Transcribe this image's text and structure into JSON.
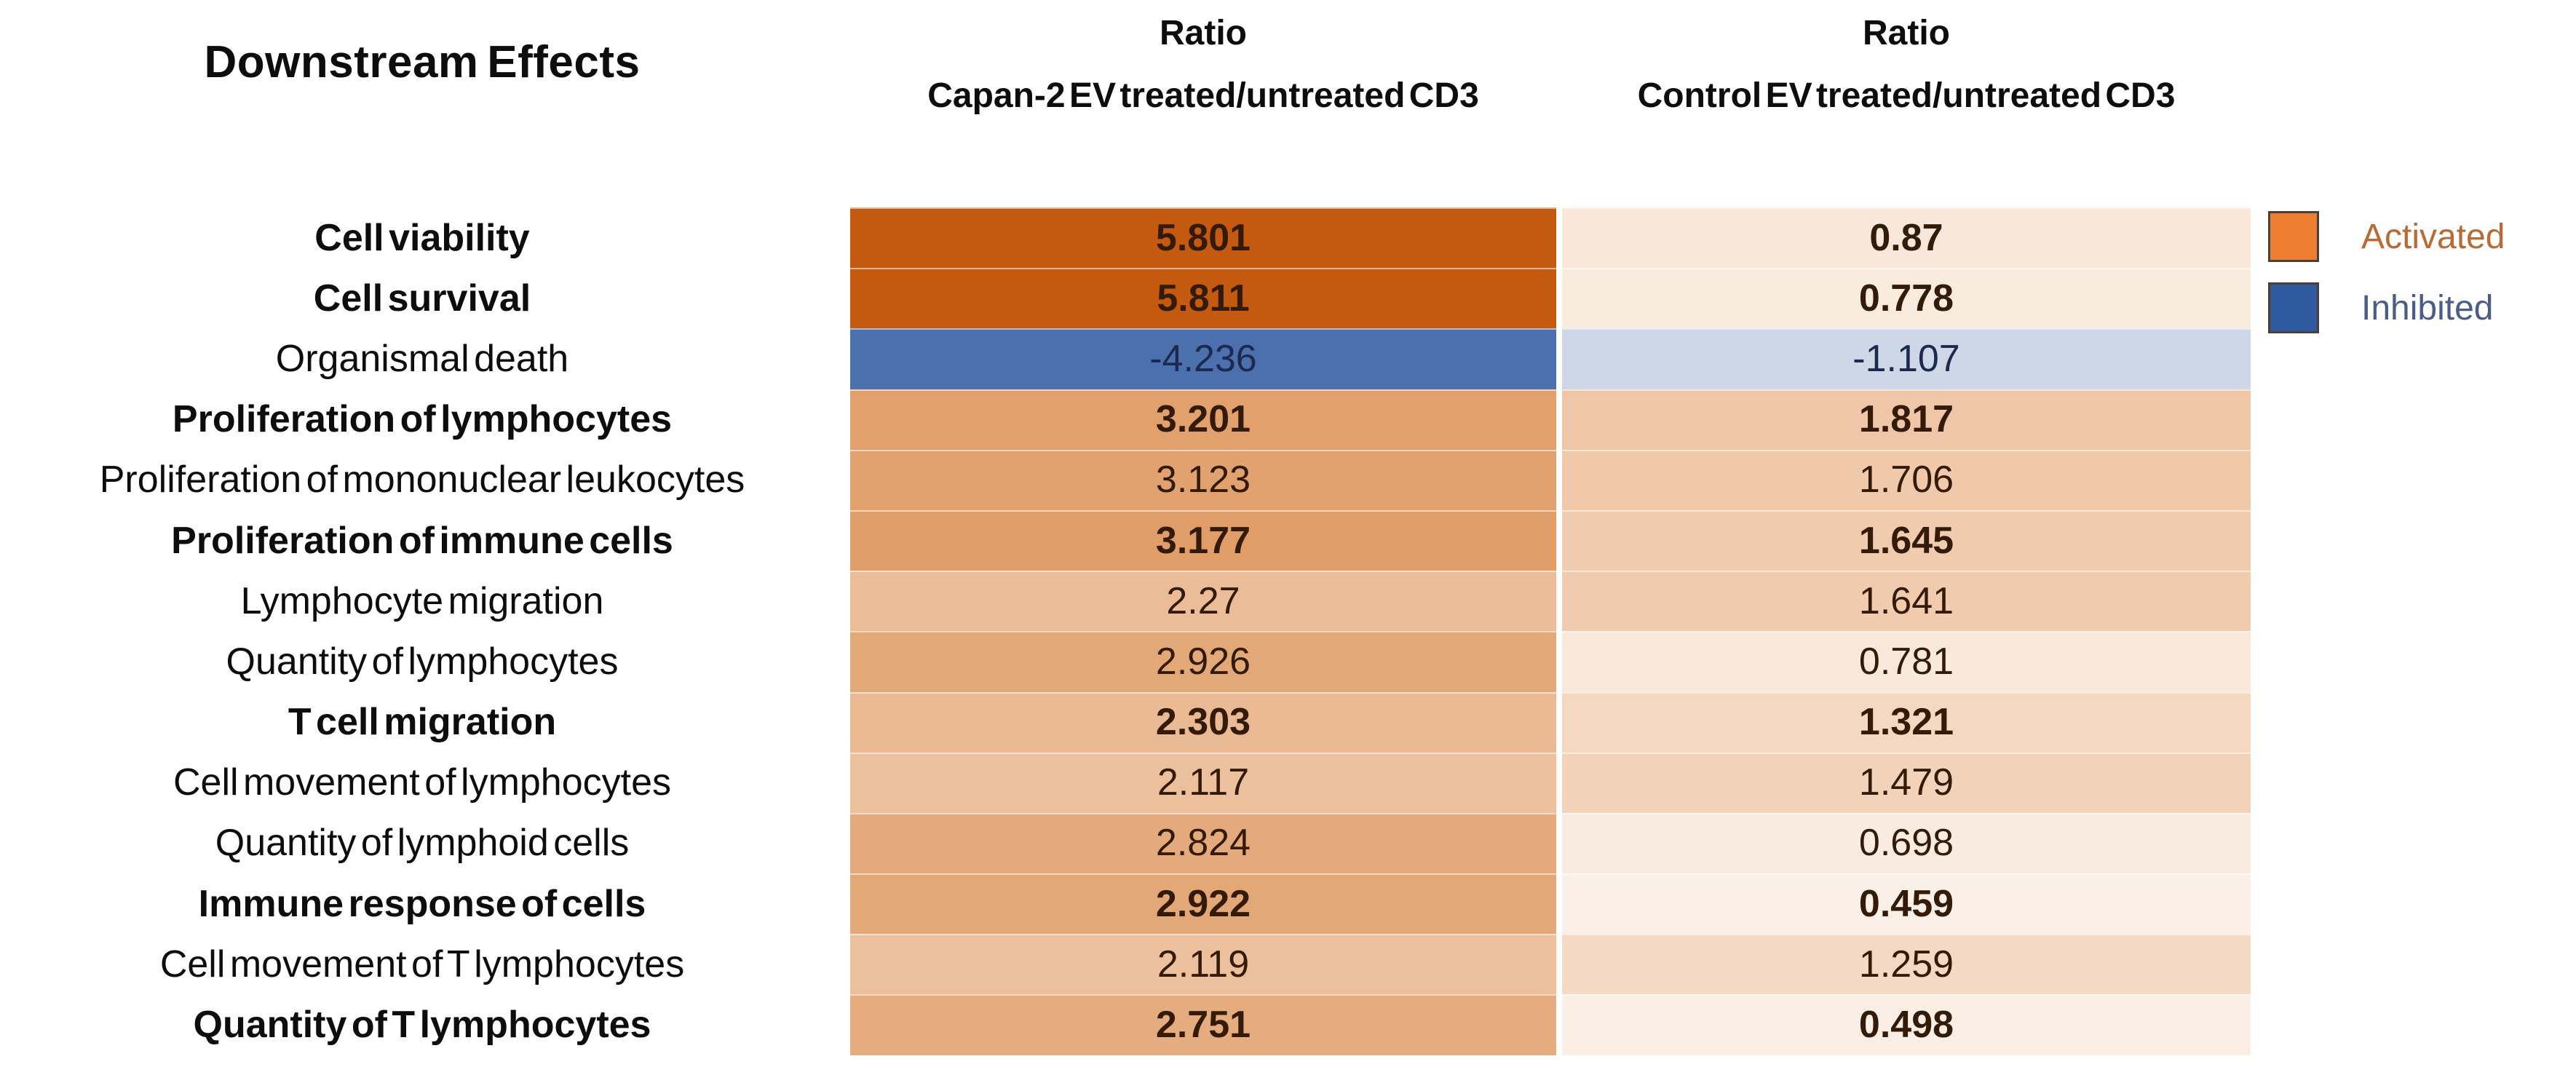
{
  "header": {
    "title": "Downstream Effects",
    "columns": [
      {
        "ratio_label": "Ratio",
        "sub_label": "Capan-2 EV treated/untreated CD3"
      },
      {
        "ratio_label": "Ratio",
        "sub_label": "Control EV treated/untreated CD3"
      }
    ]
  },
  "palette": {
    "value_text_activated": "#331b08",
    "value_text_inhibited": "#1b2a4e",
    "label_text": "#0d0d0d",
    "page_background": "#ffffff",
    "activated_strong": "#C55A11",
    "inhibited_strong": "#4C70AD"
  },
  "rows": [
    {
      "label": "Cell viability",
      "bold": true,
      "type": "activated",
      "capan2": "5.801",
      "control": "0.87",
      "capan2_bg": "#C45A10",
      "control_bg": "#F8E7DA"
    },
    {
      "label": "Cell survival",
      "bold": true,
      "type": "activated",
      "capan2": "5.811",
      "control": "0.778",
      "capan2_bg": "#C45A10",
      "control_bg": "#FAEBDF"
    },
    {
      "label": "Organismal death",
      "bold": false,
      "type": "inhibited",
      "capan2": "-4.236",
      "control": "-1.107",
      "capan2_bg": "#4C70AD",
      "control_bg": "#CDD7E8"
    },
    {
      "label": "Proliferation of lymphocytes",
      "bold": true,
      "type": "activated",
      "capan2": "3.201",
      "control": "1.817",
      "capan2_bg": "#E2A06C",
      "control_bg": "#EFC7A8"
    },
    {
      "label": "Proliferation of mononuclear leukocytes",
      "bold": false,
      "type": "activated",
      "capan2": "3.123",
      "control": "1.706",
      "capan2_bg": "#E2A26F",
      "control_bg": "#F0C9AB"
    },
    {
      "label": "Proliferation of immune cells",
      "bold": true,
      "type": "activated",
      "capan2": "3.177",
      "control": "1.645",
      "capan2_bg": "#E09D67",
      "control_bg": "#F0CBAE"
    },
    {
      "label": "Lymphocyte migration",
      "bold": false,
      "type": "activated",
      "capan2": "2.27",
      "control": "1.641",
      "capan2_bg": "#EABC97",
      "control_bg": "#F0CBAE"
    },
    {
      "label": "Quantity of lymphocytes",
      "bold": false,
      "type": "activated",
      "capan2": "2.926",
      "control": "0.781",
      "capan2_bg": "#E3A878",
      "control_bg": "#F8E9DC"
    },
    {
      "label": "T cell migration",
      "bold": true,
      "type": "activated",
      "capan2": "2.303",
      "control": "1.321",
      "capan2_bg": "#E9BA93",
      "control_bg": "#F4D8C0"
    },
    {
      "label": "Cell movement of lymphocytes",
      "bold": false,
      "type": "activated",
      "capan2": "2.117",
      "control": "1.479",
      "capan2_bg": "#ECC09C",
      "control_bg": "#F2D3BA"
    },
    {
      "label": "Quantity of lymphoid cells",
      "bold": false,
      "type": "activated",
      "capan2": "2.824",
      "control": "0.698",
      "capan2_bg": "#E4AA7C",
      "control_bg": "#F9EBDF"
    },
    {
      "label": "Immune response of cells",
      "bold": true,
      "type": "activated",
      "capan2": "2.922",
      "control": "0.459",
      "capan2_bg": "#E3A877",
      "control_bg": "#FBF0E7"
    },
    {
      "label": "Cell movement of T lymphocytes",
      "bold": false,
      "type": "activated",
      "capan2": "2.119",
      "control": "1.259",
      "capan2_bg": "#ECC09C",
      "control_bg": "#F4DAC4"
    },
    {
      "label": "Quantity of T lymphocytes",
      "bold": true,
      "type": "activated",
      "capan2": "2.751",
      "control": "0.498",
      "capan2_bg": "#E5AC80",
      "control_bg": "#FBEFE5"
    }
  ],
  "legend": {
    "items": [
      {
        "label": "Activated",
        "color": "#ED7D31",
        "text_color": "#BA6B35"
      },
      {
        "label": "Inhibited",
        "color": "#2F5AA0",
        "text_color": "#4A5D88"
      }
    ]
  },
  "chart_data": {
    "type": "heatmap",
    "title": "Downstream Effects",
    "categories": [
      "Cell viability",
      "Cell survival",
      "Organismal death",
      "Proliferation of lymphocytes",
      "Proliferation of mononuclear leukocytes",
      "Proliferation of immune cells",
      "Lymphocyte migration",
      "Quantity of lymphocytes",
      "T cell migration",
      "Cell movement of lymphocytes",
      "Quantity of lymphoid cells",
      "Immune response of cells",
      "Cell movement of T lymphocytes",
      "Quantity of T lymphocytes"
    ],
    "series": [
      {
        "name": "Ratio Capan-2 EV treated/untreated CD3",
        "values": [
          5.801,
          5.811,
          -4.236,
          3.201,
          3.123,
          3.177,
          2.27,
          2.926,
          2.303,
          2.117,
          2.824,
          2.922,
          2.119,
          2.751
        ]
      },
      {
        "name": "Ratio Control EV treated/untreated CD3",
        "values": [
          0.87,
          0.778,
          -1.107,
          1.817,
          1.706,
          1.645,
          1.641,
          0.781,
          1.321,
          1.479,
          0.698,
          0.459,
          1.259,
          0.498
        ]
      }
    ],
    "legend_entries": [
      "Activated",
      "Inhibited"
    ],
    "legend_position": "right",
    "color_mapping": "positive values = orange (Activated), darker = larger magnitude; negative values = blue (Inhibited)"
  }
}
